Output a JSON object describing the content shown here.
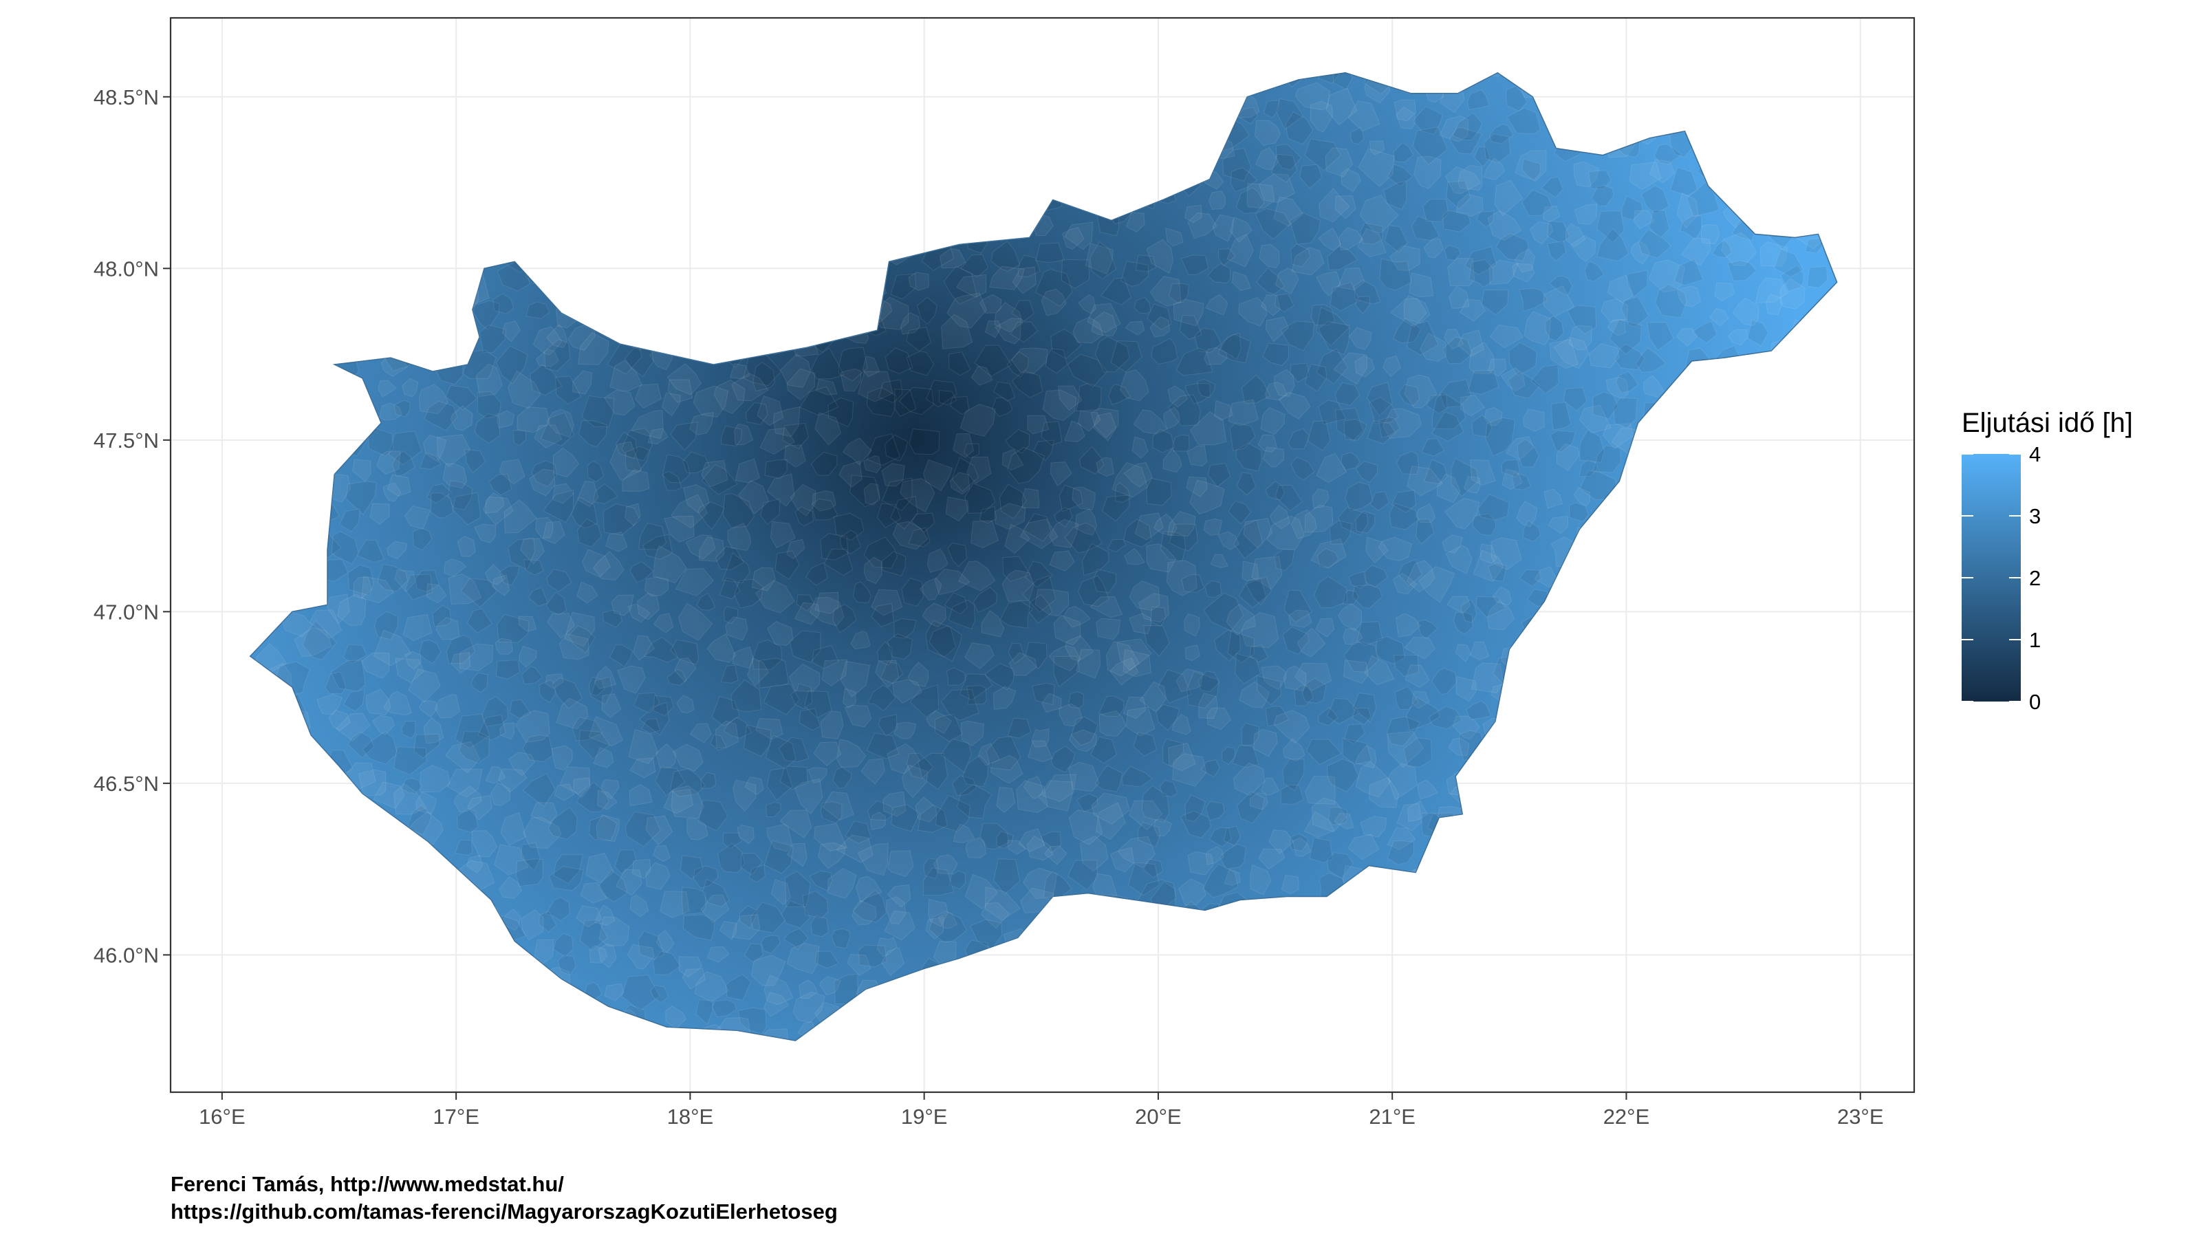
{
  "map": {
    "x_ticks": [
      {
        "value": 16,
        "label": "16°E"
      },
      {
        "value": 17,
        "label": "17°E"
      },
      {
        "value": 18,
        "label": "18°E"
      },
      {
        "value": 19,
        "label": "19°E"
      },
      {
        "value": 20,
        "label": "20°E"
      },
      {
        "value": 21,
        "label": "21°E"
      },
      {
        "value": 22,
        "label": "22°E"
      },
      {
        "value": 23,
        "label": "23°E"
      }
    ],
    "y_ticks": [
      {
        "value": 46.0,
        "label": "46.0°N"
      },
      {
        "value": 46.5,
        "label": "46.5°N"
      },
      {
        "value": 47.0,
        "label": "47.0°N"
      },
      {
        "value": 47.5,
        "label": "47.5°N"
      },
      {
        "value": 48.0,
        "label": "48.0°N"
      },
      {
        "value": 48.5,
        "label": "48.5°N"
      }
    ],
    "xlim": [
      15.78,
      23.23
    ],
    "ylim": [
      45.6,
      48.73
    ],
    "grid": true,
    "region_outline_lonlat": [
      [
        16.12,
        46.87
      ],
      [
        16.3,
        47.0
      ],
      [
        16.45,
        47.02
      ],
      [
        16.45,
        47.18
      ],
      [
        16.48,
        47.4
      ],
      [
        16.68,
        47.55
      ],
      [
        16.6,
        47.68
      ],
      [
        16.48,
        47.72
      ],
      [
        16.72,
        47.74
      ],
      [
        16.9,
        47.7
      ],
      [
        17.05,
        47.72
      ],
      [
        17.1,
        47.8
      ],
      [
        17.07,
        47.88
      ],
      [
        17.12,
        48.0
      ],
      [
        17.25,
        48.02
      ],
      [
        17.45,
        47.87
      ],
      [
        17.7,
        47.78
      ],
      [
        18.1,
        47.72
      ],
      [
        18.5,
        47.77
      ],
      [
        18.8,
        47.82
      ],
      [
        18.85,
        48.02
      ],
      [
        19.15,
        48.07
      ],
      [
        19.45,
        48.09
      ],
      [
        19.55,
        48.2
      ],
      [
        19.8,
        48.14
      ],
      [
        20.02,
        48.2
      ],
      [
        20.22,
        48.26
      ],
      [
        20.38,
        48.5
      ],
      [
        20.6,
        48.55
      ],
      [
        20.8,
        48.57
      ],
      [
        21.08,
        48.51
      ],
      [
        21.28,
        48.51
      ],
      [
        21.45,
        48.57
      ],
      [
        21.6,
        48.5
      ],
      [
        21.7,
        48.35
      ],
      [
        21.9,
        48.33
      ],
      [
        22.1,
        48.38
      ],
      [
        22.25,
        48.4
      ],
      [
        22.35,
        48.24
      ],
      [
        22.55,
        48.1
      ],
      [
        22.72,
        48.09
      ],
      [
        22.82,
        48.1
      ],
      [
        22.9,
        47.96
      ],
      [
        22.62,
        47.76
      ],
      [
        22.42,
        47.74
      ],
      [
        22.28,
        47.73
      ],
      [
        22.05,
        47.55
      ],
      [
        21.97,
        47.38
      ],
      [
        21.8,
        47.24
      ],
      [
        21.65,
        47.03
      ],
      [
        21.5,
        46.89
      ],
      [
        21.44,
        46.68
      ],
      [
        21.27,
        46.52
      ],
      [
        21.3,
        46.41
      ],
      [
        21.2,
        46.4
      ],
      [
        21.1,
        46.24
      ],
      [
        20.9,
        46.26
      ],
      [
        20.72,
        46.17
      ],
      [
        20.55,
        46.17
      ],
      [
        20.35,
        46.16
      ],
      [
        20.2,
        46.13
      ],
      [
        19.9,
        46.16
      ],
      [
        19.7,
        46.18
      ],
      [
        19.55,
        46.17
      ],
      [
        19.4,
        46.05
      ],
      [
        19.15,
        45.99
      ],
      [
        19.0,
        45.96
      ],
      [
        18.75,
        45.9
      ],
      [
        18.45,
        45.75
      ],
      [
        18.2,
        45.78
      ],
      [
        17.9,
        45.79
      ],
      [
        17.65,
        45.85
      ],
      [
        17.45,
        45.93
      ],
      [
        17.25,
        46.04
      ],
      [
        17.15,
        46.16
      ],
      [
        16.88,
        46.33
      ],
      [
        16.6,
        46.47
      ],
      [
        16.5,
        46.55
      ],
      [
        16.38,
        46.64
      ],
      [
        16.3,
        46.78
      ],
      [
        16.12,
        46.87
      ]
    ],
    "legend": {
      "title": "Eljutási idő [h]",
      "min": 0,
      "max": 4,
      "ticks": [
        {
          "value": 0,
          "label": "0"
        },
        {
          "value": 1,
          "label": "1"
        },
        {
          "value": 2,
          "label": "2"
        },
        {
          "value": 3,
          "label": "3"
        },
        {
          "value": 4,
          "label": "4"
        }
      ],
      "color_low": "#132B43",
      "color_high": "#56B1F7"
    }
  },
  "caption": {
    "line1": "Ferenci Tamás, http://www.medstat.hu/",
    "line2": "https://github.com/tamas-ferenci/MagyarorszagKozutiElerhetoseg"
  }
}
